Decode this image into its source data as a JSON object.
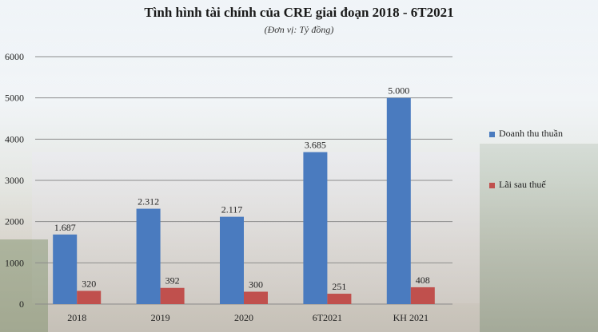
{
  "chart_data": {
    "type": "bar",
    "title": "Tình hình tài chính của CRE giai đoạn 2018 - 6T2021",
    "subtitle": "(Đơn vị: Tỷ đồng)",
    "categories": [
      "2018",
      "2019",
      "2020",
      "6T2021",
      "KH 2021"
    ],
    "series": [
      {
        "name": "Doanh thu thuần",
        "color": "#4a7bbf",
        "values": [
          1687,
          2312,
          2117,
          3685,
          5000
        ],
        "labels": [
          "1.687",
          "2.312",
          "2.117",
          "3.685",
          "5.000"
        ]
      },
      {
        "name": "Lãi sau thuế",
        "color": "#c0504d",
        "values": [
          320,
          392,
          300,
          251,
          408
        ],
        "labels": [
          "320",
          "392",
          "300",
          "251",
          "408"
        ]
      }
    ],
    "ylim": [
      0,
      6000
    ],
    "yticks": [
      0,
      1000,
      2000,
      3000,
      4000,
      5000,
      6000
    ],
    "grid": true,
    "legend": "right"
  }
}
